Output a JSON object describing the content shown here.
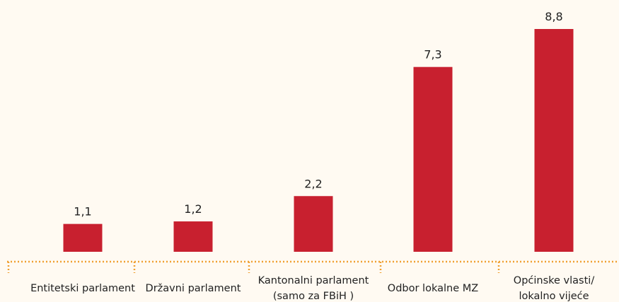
{
  "chart_data": {
    "type": "bar",
    "categories": [
      "Entitetski parlament",
      "Državni parlament",
      "Kantonalni parlament (samo za FBiH )",
      "Odbor lokalne MZ",
      "Općinske vlasti/ lokalno vijeće"
    ],
    "values": [
      1.1,
      1.2,
      2.2,
      7.3,
      8.8
    ],
    "value_labels": [
      "1,1",
      "1,2",
      "2,2",
      "7,3",
      "8,8"
    ],
    "color": "#c8202f"
  }
}
